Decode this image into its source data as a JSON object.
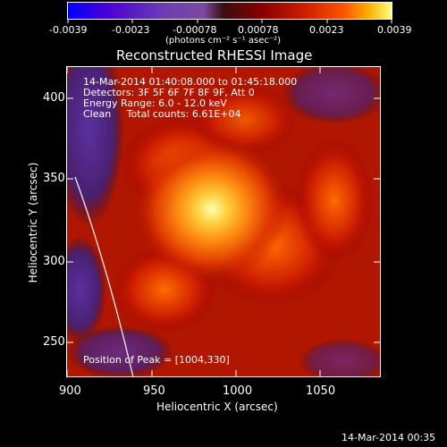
{
  "colorbar": {
    "ticks": [
      "-0.0039",
      "-0.0023",
      "-0.00078",
      "0.00078",
      "0.0023",
      "0.0039"
    ],
    "unit_label": "(photons cm⁻² s⁻¹ asec⁻²)"
  },
  "plot": {
    "title": "Reconstructed RHESSI Image",
    "info": {
      "line1": "14-Mar-2014 01:40:08.000 to 01:45:18.000",
      "line2": "Detectors: 3F 5F 6F 7F 8F 9F, Att 0",
      "line3": "Energy Range: 6.0 - 12.0 keV",
      "line4": "Clean     Total counts: 6.61E+04"
    },
    "peak_label": "Position of Peak = [1004,330]",
    "xlabel": "Heliocentric X (arcsec)",
    "ylabel": "Heliocentric Y (arcsec)",
    "xticks": [
      "900",
      "950",
      "1000",
      "1050"
    ],
    "yticks": [
      "250",
      "300",
      "350",
      "400"
    ]
  },
  "footer": {
    "timestamp": "14-Mar-2014 00:35"
  },
  "colors": {
    "background": "#000000",
    "limb_line": "#ffffff"
  }
}
